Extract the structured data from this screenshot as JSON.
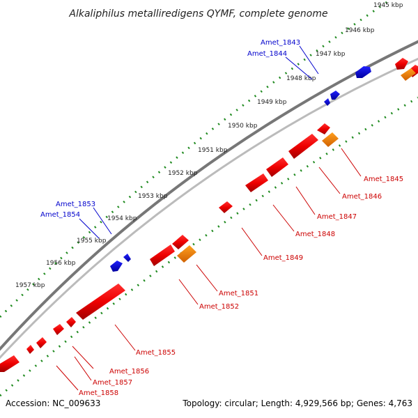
{
  "title": "Alkaliphilus metalliredigens QYMF, complete genome",
  "footer": {
    "accession": "Accession: NC_009633",
    "summary": "Topology: circular; Length: 4,929,566 bp; Genes: 4,763"
  },
  "colors": {
    "backbone": "#8a8a8a",
    "tick": "#1f8a1f",
    "forward_gene": "#0000ee",
    "reverse_gene": "#ee0000",
    "reverse_gene_alt": "#ff8c00",
    "forward_label": "#0000cc",
    "reverse_label": "#cc0000"
  },
  "ruler_labels": [
    "1945 kbp",
    "1946 kbp",
    "1947 kbp",
    "1948 kbp",
    "1949 kbp",
    "1950 kbp",
    "1951 kbp",
    "1952 kbp",
    "1953 kbp",
    "1954 kbp",
    "1955 kbp",
    "1956 kbp",
    "1957 kbp"
  ],
  "forward_gene_labels": [
    "Amet_1843",
    "Amet_1844",
    "Amet_1853",
    "Amet_1854"
  ],
  "reverse_gene_labels": [
    "Amet_1845",
    "Amet_1846",
    "Amet_1847",
    "Amet_1848",
    "Amet_1849",
    "Amet_1851",
    "Amet_1852",
    "Amet_1855",
    "Amet_1856",
    "Amet_1857",
    "Amet_1858"
  ]
}
